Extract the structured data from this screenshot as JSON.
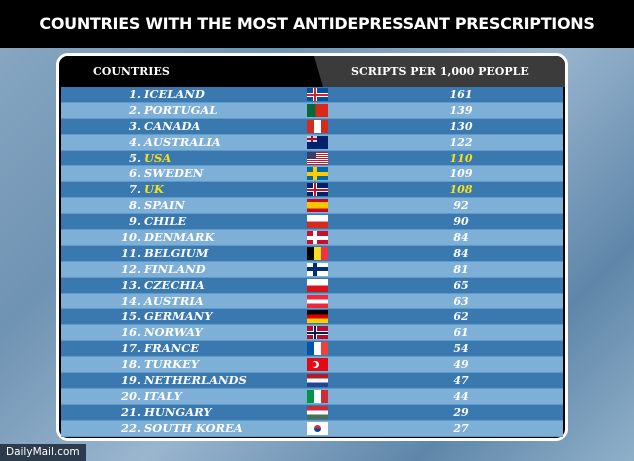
{
  "title": "COUNTRIES WITH THE MOST ANTIDEPRESSANT PRESCRIPTIONS",
  "footer": "DailyMail.com",
  "highlight_color": "#f5e21a",
  "chart_data": {
    "type": "table",
    "title": "COUNTRIES WITH THE MOST ANTIDEPRESSANT PRESCRIPTIONS",
    "columns": [
      "COUNTRIES",
      "SCRIPTS PER 1,000 PEOPLE"
    ],
    "rows": [
      {
        "rank": "1.",
        "country": "ICELAND",
        "value": "161",
        "flag": "iceland-flag",
        "colors": [
          "#02529c",
          "#fff",
          "#dc1e35"
        ],
        "cross": true
      },
      {
        "rank": "2.",
        "country": "PORTUGAL",
        "value": "139",
        "flag": "portugal-flag",
        "colors": [
          "#046a38",
          "#da291c"
        ],
        "split": "v40"
      },
      {
        "rank": "3.",
        "country": "CANADA",
        "value": "130",
        "flag": "canada-flag",
        "colors": [
          "#d52b1e",
          "#fff",
          "#d52b1e"
        ],
        "split": "v3"
      },
      {
        "rank": "4.",
        "country": "AUSTRALIA",
        "value": "122",
        "flag": "australia-flag",
        "colors": [
          "#012169"
        ]
      },
      {
        "rank": "5.",
        "country": "USA",
        "value": "110",
        "flag": "usa-flag",
        "colors": [
          "#b22234",
          "#fff"
        ],
        "highlight": true,
        "split": "stripes"
      },
      {
        "rank": "6.",
        "country": "SWEDEN",
        "value": "109",
        "flag": "sweden-flag",
        "colors": [
          "#006aa7",
          "#fecc00",
          "#fecc00"
        ],
        "cross": true
      },
      {
        "rank": "7.",
        "country": "UK",
        "value": "108",
        "flag": "uk-flag",
        "colors": [
          "#012169",
          "#fff",
          "#c8102e"
        ],
        "highlight": true,
        "cross": true
      },
      {
        "rank": "8.",
        "country": "SPAIN",
        "value": "92",
        "flag": "spain-flag",
        "colors": [
          "#c60b1e",
          "#ffc400",
          "#ffc400",
          "#c60b1e"
        ],
        "split": "h"
      },
      {
        "rank": "9.",
        "country": "CHILE",
        "value": "90",
        "flag": "chile-flag",
        "colors": [
          "#fff",
          "#d52b1e"
        ],
        "split": "h"
      },
      {
        "rank": "10.",
        "country": "DENMARK",
        "value": "84",
        "flag": "denmark-flag",
        "colors": [
          "#c8102e",
          "#fff",
          "#fff"
        ],
        "cross": true
      },
      {
        "rank": "11.",
        "country": "BELGIUM",
        "value": "84",
        "flag": "belgium-flag",
        "colors": [
          "#000",
          "#fdda24",
          "#ef3340"
        ],
        "split": "v3"
      },
      {
        "rank": "12.",
        "country": "FINLAND",
        "value": "81",
        "flag": "finland-flag",
        "colors": [
          "#fff",
          "#002f6c",
          "#002f6c"
        ],
        "cross": true
      },
      {
        "rank": "13.",
        "country": "CZECHIA",
        "value": "65",
        "flag": "czechia-flag",
        "colors": [
          "#fff",
          "#d7141a"
        ],
        "split": "h"
      },
      {
        "rank": "14.",
        "country": "AUSTRIA",
        "value": "63",
        "flag": "austria-flag",
        "colors": [
          "#ed2939",
          "#fff",
          "#ed2939"
        ],
        "split": "h"
      },
      {
        "rank": "15.",
        "country": "GERMANY",
        "value": "62",
        "flag": "germany-flag",
        "colors": [
          "#000",
          "#dd0000",
          "#ffce00"
        ],
        "split": "h"
      },
      {
        "rank": "16.",
        "country": "NORWAY",
        "value": "61",
        "flag": "norway-flag",
        "colors": [
          "#ba0c2f",
          "#fff",
          "#00205b"
        ],
        "cross": true
      },
      {
        "rank": "17.",
        "country": "FRANCE",
        "value": "54",
        "flag": "france-flag",
        "colors": [
          "#0055a4",
          "#fff",
          "#ef4135"
        ],
        "split": "v3"
      },
      {
        "rank": "18.",
        "country": "TURKEY",
        "value": "49",
        "flag": "turkey-flag",
        "colors": [
          "#e30a17"
        ]
      },
      {
        "rank": "19.",
        "country": "NETHERLANDS",
        "value": "47",
        "flag": "netherlands-flag",
        "colors": [
          "#ae1c28",
          "#fff",
          "#21468b"
        ],
        "split": "h"
      },
      {
        "rank": "20.",
        "country": "ITALY",
        "value": "44",
        "flag": "italy-flag",
        "colors": [
          "#009246",
          "#fff",
          "#ce2b37"
        ],
        "split": "v3"
      },
      {
        "rank": "21.",
        "country": "HUNGARY",
        "value": "29",
        "flag": "hungary-flag",
        "colors": [
          "#ce2939",
          "#fff",
          "#477050"
        ],
        "split": "h"
      },
      {
        "rank": "22.",
        "country": "SOUTH KOREA",
        "value": "27",
        "flag": "south-korea-flag",
        "colors": [
          "#fff"
        ]
      }
    ]
  }
}
